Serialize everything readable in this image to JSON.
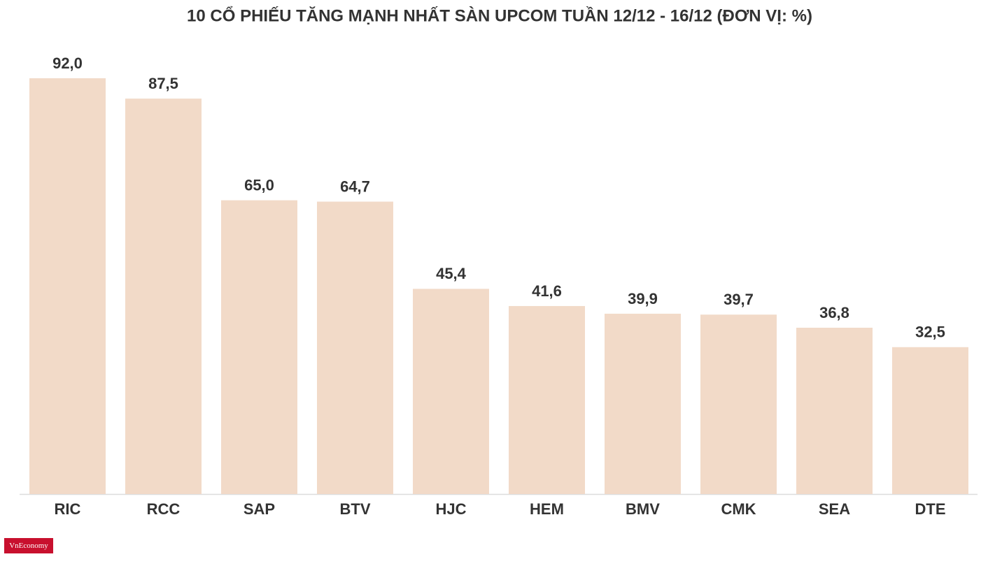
{
  "chart_data": {
    "type": "bar",
    "title": "10 CỔ PHIẾU TĂNG MẠNH NHẤT SÀN UPCOM TUẦN 12/12 - 16/12 (ĐƠN VỊ: %)",
    "categories": [
      "RIC",
      "RCC",
      "SAP",
      "BTV",
      "HJC",
      "HEM",
      "BMV",
      "CMK",
      "SEA",
      "DTE"
    ],
    "values": [
      92.0,
      87.5,
      65.0,
      64.7,
      45.4,
      41.6,
      39.9,
      39.7,
      36.8,
      32.5
    ],
    "value_labels": [
      "92,0",
      "87,5",
      "65,0",
      "64,7",
      "45,4",
      "41,6",
      "39,9",
      "39,7",
      "36,8",
      "32,5"
    ],
    "color": "#f2dac8"
  },
  "logo": "VnEconomy"
}
